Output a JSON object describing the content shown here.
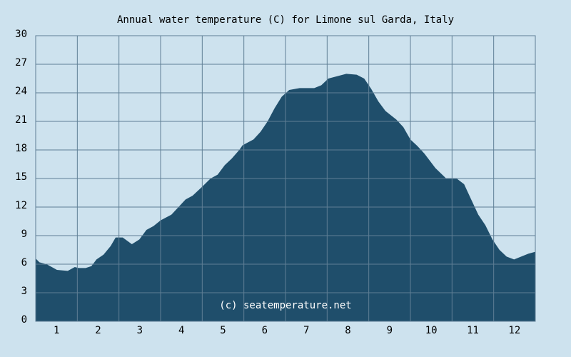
{
  "chart_data": {
    "type": "area",
    "title": "Annual water temperature (C) for Limone sul Garda, Italy",
    "annotation": "(c) seatemperature.net",
    "x": [
      0.5,
      0.59,
      0.76,
      0.93,
      1.01,
      1.27,
      1.44,
      1.53,
      1.7,
      1.84,
      1.96,
      2.13,
      2.3,
      2.42,
      2.59,
      2.81,
      2.99,
      3.16,
      3.33,
      3.5,
      3.76,
      3.93,
      4.1,
      4.27,
      4.49,
      4.7,
      4.87,
      5.04,
      5.21,
      5.39,
      5.47,
      5.73,
      5.9,
      6.07,
      6.24,
      6.41,
      6.59,
      6.84,
      7.19,
      7.36,
      7.53,
      7.79,
      7.96,
      8.21,
      8.39,
      8.56,
      8.73,
      8.9,
      9.16,
      9.33,
      9.5,
      9.67,
      9.84,
      10.1,
      10.36,
      10.61,
      10.79,
      10.96,
      11.13,
      11.3,
      11.47,
      11.64,
      11.81,
      11.99,
      12.16,
      12.33,
      12.5
    ],
    "series": [
      {
        "name": "Water temperature",
        "color": "#1f4e6b",
        "values": [
          6.6,
          6.2,
          6.0,
          5.6,
          5.4,
          5.3,
          5.7,
          5.6,
          5.6,
          5.8,
          6.5,
          7.0,
          7.9,
          8.8,
          8.8,
          8.1,
          8.6,
          9.6,
          10.0,
          10.6,
          11.2,
          12.0,
          12.8,
          13.2,
          14.1,
          15.0,
          15.4,
          16.4,
          17.1,
          18.0,
          18.5,
          19.1,
          19.9,
          21.0,
          22.4,
          23.6,
          24.3,
          24.5,
          24.5,
          24.8,
          25.5,
          25.8,
          26.0,
          25.9,
          25.5,
          24.4,
          23.1,
          22.1,
          21.2,
          20.4,
          19.1,
          18.4,
          17.6,
          16.1,
          15.0,
          15.0,
          14.4,
          12.8,
          11.2,
          10.1,
          8.6,
          7.5,
          6.8,
          6.5,
          6.8,
          7.1,
          7.3
        ]
      }
    ],
    "xlim": [
      0.5,
      12.5
    ],
    "xticks": [
      1,
      2,
      3,
      4,
      5,
      6,
      7,
      8,
      9,
      10,
      11,
      12
    ],
    "ylim": [
      0,
      30
    ],
    "yticks": [
      0,
      3,
      6,
      9,
      12,
      15,
      18,
      21,
      24,
      27,
      30
    ],
    "grid": true
  }
}
